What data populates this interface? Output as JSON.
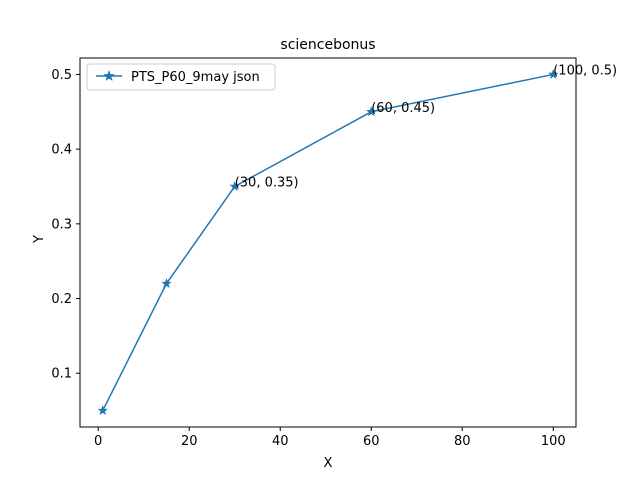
{
  "chart_data": {
    "type": "line",
    "title": "sciencebonus",
    "xlabel": "X",
    "ylabel": "Y",
    "xlim": [
      -4,
      105
    ],
    "ylim": [
      0.028,
      0.522
    ],
    "xticks": [
      0,
      20,
      40,
      60,
      80,
      100
    ],
    "xtick_labels": [
      "0",
      "20",
      "40",
      "60",
      "80",
      "100"
    ],
    "yticks": [
      0.1,
      0.2,
      0.3,
      0.4,
      0.5
    ],
    "ytick_labels": [
      "0.1",
      "0.2",
      "0.3",
      "0.4",
      "0.5"
    ],
    "grid": false,
    "legend": {
      "position": "top-left",
      "entries": [
        "PTS_P60_9may json"
      ]
    },
    "series": [
      {
        "name": "PTS_P60_9may json",
        "color": "#1f77b4",
        "marker": "star",
        "x": [
          1,
          15,
          30,
          60,
          100
        ],
        "y": [
          0.05,
          0.22,
          0.35,
          0.45,
          0.5
        ]
      }
    ],
    "annotations": [
      {
        "text": "(30, 0.35)",
        "x": 30,
        "y": 0.35
      },
      {
        "text": "(60, 0.45)",
        "x": 60,
        "y": 0.45
      },
      {
        "text": "(100, 0.5)",
        "x": 100,
        "y": 0.5
      }
    ]
  }
}
